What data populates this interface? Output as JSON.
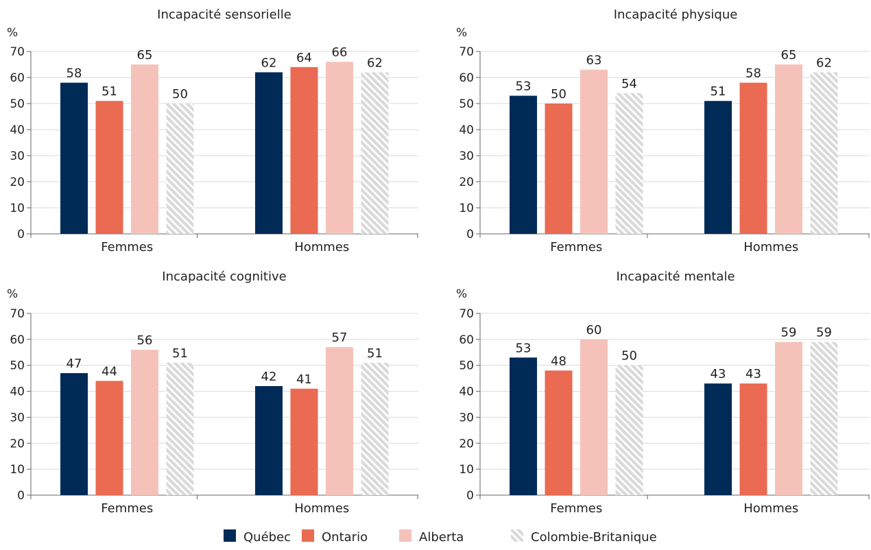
{
  "colors": {
    "quebec": "#002B57",
    "ontario": "#EA6A52",
    "alberta": "#F5C2BA",
    "colombie": "#D9D9D9",
    "grid": "#D9D9D9",
    "axis": "#666666"
  },
  "legend": {
    "items": [
      {
        "key": "quebec",
        "label": "Québec"
      },
      {
        "key": "ontario",
        "label": "Ontario"
      },
      {
        "key": "alberta",
        "label": "Alberta"
      },
      {
        "key": "colombie",
        "label": "Colombie-Britanique"
      }
    ],
    "placement": "bottom"
  },
  "chart_data": [
    {
      "type": "bar",
      "title": "Incapacité sensorielle",
      "ylabel": "%",
      "ylim": [
        0,
        70
      ],
      "yticks": [
        "0",
        "10",
        "20",
        "30",
        "40",
        "50",
        "60",
        "70"
      ],
      "categories": [
        "Femmes",
        "Hommes"
      ],
      "series": [
        {
          "name": "Québec",
          "key": "quebec",
          "values": [
            58,
            62
          ]
        },
        {
          "name": "Ontario",
          "key": "ontario",
          "values": [
            51,
            64
          ]
        },
        {
          "name": "Alberta",
          "key": "alberta",
          "values": [
            65,
            66
          ]
        },
        {
          "name": "Colombie-Britanique",
          "key": "colombie",
          "values": [
            50,
            62
          ]
        }
      ]
    },
    {
      "type": "bar",
      "title": "Incapacité physique",
      "ylabel": "%",
      "ylim": [
        0,
        70
      ],
      "yticks": [
        "0",
        "10",
        "20",
        "30",
        "40",
        "50",
        "60",
        "70"
      ],
      "categories": [
        "Femmes",
        "Hommes"
      ],
      "series": [
        {
          "name": "Québec",
          "key": "quebec",
          "values": [
            53,
            51
          ]
        },
        {
          "name": "Ontario",
          "key": "ontario",
          "values": [
            50,
            58
          ]
        },
        {
          "name": "Alberta",
          "key": "alberta",
          "values": [
            63,
            65
          ]
        },
        {
          "name": "Colombie-Britanique",
          "key": "colombie",
          "values": [
            54,
            62
          ]
        }
      ]
    },
    {
      "type": "bar",
      "title": "Incapacité cognitive",
      "ylabel": "%",
      "ylim": [
        0,
        70
      ],
      "yticks": [
        "0",
        "10",
        "20",
        "30",
        "40",
        "50",
        "60",
        "70"
      ],
      "categories": [
        "Femmes",
        "Hommes"
      ],
      "series": [
        {
          "name": "Québec",
          "key": "quebec",
          "values": [
            47,
            42
          ]
        },
        {
          "name": "Ontario",
          "key": "ontario",
          "values": [
            44,
            41
          ]
        },
        {
          "name": "Alberta",
          "key": "alberta",
          "values": [
            56,
            57
          ]
        },
        {
          "name": "Colombie-Britanique",
          "key": "colombie",
          "values": [
            51,
            51
          ]
        }
      ]
    },
    {
      "type": "bar",
      "title": "Incapacité mentale",
      "ylabel": "%",
      "ylim": [
        0,
        70
      ],
      "yticks": [
        "0",
        "10",
        "20",
        "30",
        "40",
        "50",
        "60",
        "70"
      ],
      "categories": [
        "Femmes",
        "Hommes"
      ],
      "series": [
        {
          "name": "Québec",
          "key": "quebec",
          "values": [
            53,
            43
          ]
        },
        {
          "name": "Ontario",
          "key": "ontario",
          "values": [
            48,
            43
          ]
        },
        {
          "name": "Alberta",
          "key": "alberta",
          "values": [
            60,
            59
          ]
        },
        {
          "name": "Colombie-Britanique",
          "key": "colombie",
          "values": [
            50,
            59
          ]
        }
      ]
    }
  ]
}
